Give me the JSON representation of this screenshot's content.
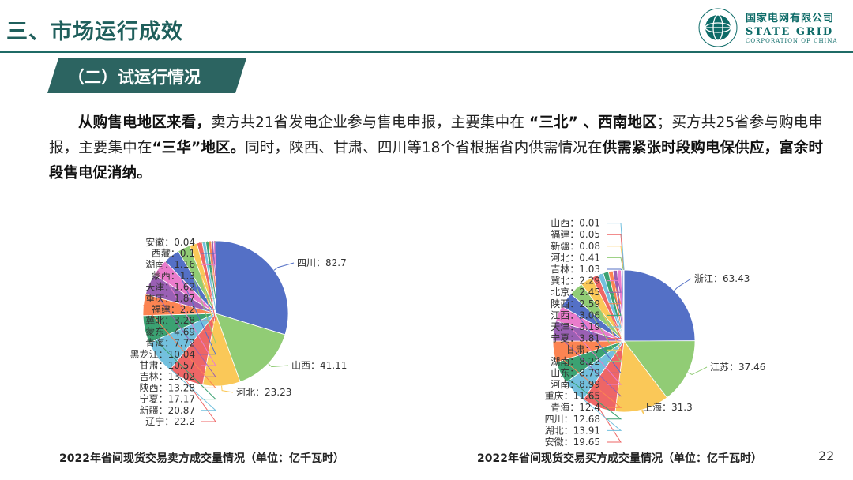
{
  "header": {
    "title": "三、市场运行成效",
    "logo_cn": "国家电网有限公司",
    "logo_en": "STATE GRID",
    "logo_sub": "CORPORATION OF CHINA"
  },
  "section": {
    "subtitle": "（二）试运行情况"
  },
  "paragraph": {
    "s1": "从购售电地区来看，",
    "s2": "卖方共21省发电企业参与售电申报，主要集中在 ",
    "s3": "“三北” 、西南地区",
    "s4": "；买方共25省参与购电申报，主要集中在",
    "s5": "“三华”地区。",
    "s6": "同时，陕西、甘肃、四川等18个省根据省内供需情况在",
    "s7": "供需紧张时段购电保供应，富余时段售电促消纳。"
  },
  "page_number": "22",
  "colors": {
    "brand": "#1f6b66",
    "palette": [
      "#5470c6",
      "#91cc75",
      "#fac858",
      "#ee6666",
      "#73c0de",
      "#3ba272",
      "#fc8452",
      "#9a60b4",
      "#ea7ccc"
    ]
  },
  "chart_data": [
    {
      "type": "pie",
      "title": "2022年省间现货交易卖方成交量情况（单位：亿千瓦时）",
      "slices": [
        {
          "name": "四川",
          "value": 82.7
        },
        {
          "name": "山西",
          "value": 41.11
        },
        {
          "name": "河北",
          "value": 23.23
        },
        {
          "name": "辽宁",
          "value": 22.2
        },
        {
          "name": "新疆",
          "value": 20.87
        },
        {
          "name": "宁夏",
          "value": 17.17
        },
        {
          "name": "陕西",
          "value": 13.28
        },
        {
          "name": "吉林",
          "value": 13.02
        },
        {
          "name": "甘肃",
          "value": 10.57
        },
        {
          "name": "黑龙江",
          "value": 10.04
        },
        {
          "name": "青海",
          "value": 7.72
        },
        {
          "name": "蒙东",
          "value": 4.69
        },
        {
          "name": "冀北",
          "value": 3.28
        },
        {
          "name": "福建",
          "value": 2.2
        },
        {
          "name": "重庆",
          "value": 1.87
        },
        {
          "name": "天津",
          "value": 1.62
        },
        {
          "name": "蒙西",
          "value": 1.3
        },
        {
          "name": "湖南",
          "value": 1.16
        },
        {
          "name": "西藏",
          "value": 0.1
        },
        {
          "name": "安徽",
          "value": 0.04
        }
      ]
    },
    {
      "type": "pie",
      "title": "2022年省间现货交易买方成交量情况（单位：亿千瓦时）",
      "slices": [
        {
          "name": "浙江",
          "value": 63.43
        },
        {
          "name": "江苏",
          "value": 37.46
        },
        {
          "name": "上海",
          "value": 31.3
        },
        {
          "name": "安徽",
          "value": 19.65
        },
        {
          "name": "湖北",
          "value": 13.91
        },
        {
          "name": "四川",
          "value": 12.68
        },
        {
          "name": "青海",
          "value": 12.4
        },
        {
          "name": "重庆",
          "value": 11.65
        },
        {
          "name": "河南",
          "value": 8.99
        },
        {
          "name": "山东",
          "value": 8.79
        },
        {
          "name": "湖南",
          "value": 8.22
        },
        {
          "name": "甘肃",
          "value": 7
        },
        {
          "name": "宁夏",
          "value": 3.81
        },
        {
          "name": "天津",
          "value": 3.19
        },
        {
          "name": "江西",
          "value": 3.06
        },
        {
          "name": "陕西",
          "value": 2.59
        },
        {
          "name": "北京",
          "value": 2.45
        },
        {
          "name": "冀北",
          "value": 2.29
        },
        {
          "name": "吉林",
          "value": 1.03
        },
        {
          "name": "河北",
          "value": 0.41
        },
        {
          "name": "新疆",
          "value": 0.08
        },
        {
          "name": "福建",
          "value": 0.05
        },
        {
          "name": "山西",
          "value": 0.01
        }
      ]
    }
  ]
}
